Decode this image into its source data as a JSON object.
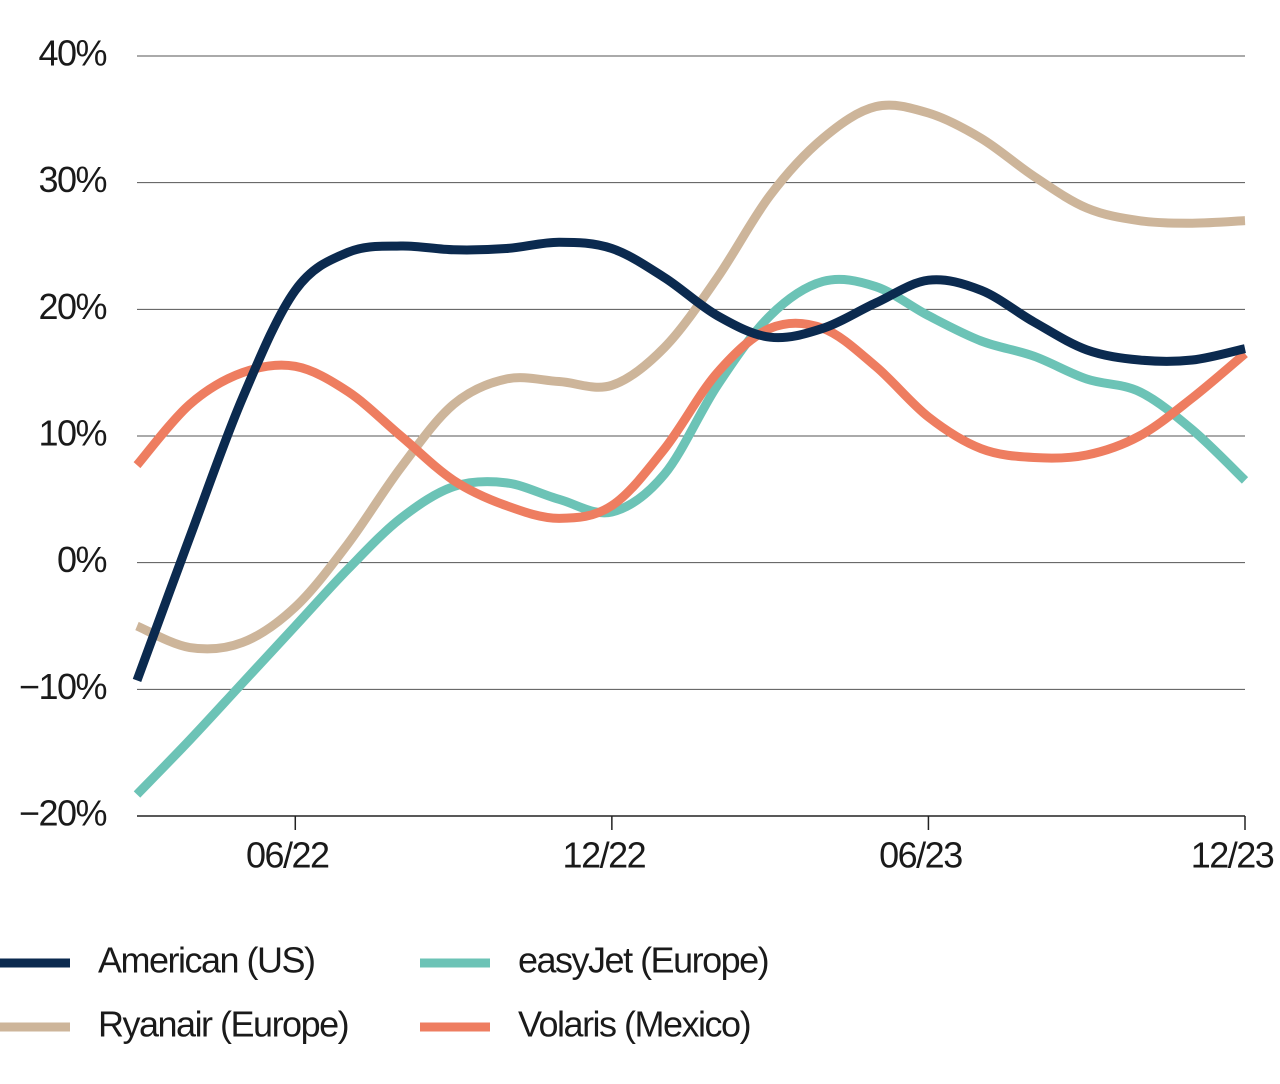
{
  "chart_data": {
    "type": "line",
    "categories": [
      null,
      null,
      null,
      "06/22",
      null,
      null,
      null,
      null,
      null,
      "12/22",
      null,
      null,
      null,
      null,
      null,
      "06/23",
      null,
      null,
      null,
      null,
      null,
      "12/23"
    ],
    "series": [
      {
        "name": "American (US)",
        "color": "#0b2a4f",
        "values": [
          -9.3,
          2,
          13,
          21.5,
          24.5,
          25,
          24.7,
          24.8,
          25.3,
          24.8,
          22.5,
          19.5,
          17.8,
          18.5,
          20.5,
          22.3,
          21.5,
          19,
          16.8,
          16,
          16,
          16.9
        ]
      },
      {
        "name": "Ryanair (Europe)",
        "color": "#cdb59a",
        "values": [
          -5,
          -6.7,
          -6.3,
          -3.5,
          1.5,
          7.5,
          12.5,
          14.5,
          14.3,
          14,
          17,
          22.5,
          29,
          33.5,
          36,
          35.5,
          33.5,
          30.5,
          28,
          27,
          26.8,
          27
        ]
      },
      {
        "name": "easyJet (Europe)",
        "color": "#6cc3b6",
        "values": [
          -18.3,
          -14,
          -9.5,
          -5,
          -0.5,
          3.5,
          6,
          6.3,
          5,
          4,
          7,
          14,
          19.5,
          22.2,
          21.8,
          19.5,
          17.5,
          16.3,
          14.5,
          13.5,
          10.5,
          6.5
        ]
      },
      {
        "name": "Volaris (Mexico)",
        "color": "#ee7d60",
        "values": [
          7.7,
          12.5,
          15,
          15.5,
          13.5,
          10,
          6.5,
          4.5,
          3.5,
          4.5,
          9,
          15,
          18.5,
          18.5,
          15.5,
          11.5,
          9,
          8.3,
          8.5,
          10,
          13,
          16.5
        ]
      }
    ],
    "ylim": [
      -20,
      40
    ],
    "yticks": [
      {
        "value": -20,
        "label": "−20%"
      },
      {
        "value": -10,
        "label": "−10%"
      },
      {
        "value": 0,
        "label": "0%"
      },
      {
        "value": 10,
        "label": "10%"
      },
      {
        "value": 20,
        "label": "20%"
      },
      {
        "value": 30,
        "label": "30%"
      },
      {
        "value": 40,
        "label": "40%"
      }
    ],
    "grid": true,
    "legend": "bottom"
  }
}
